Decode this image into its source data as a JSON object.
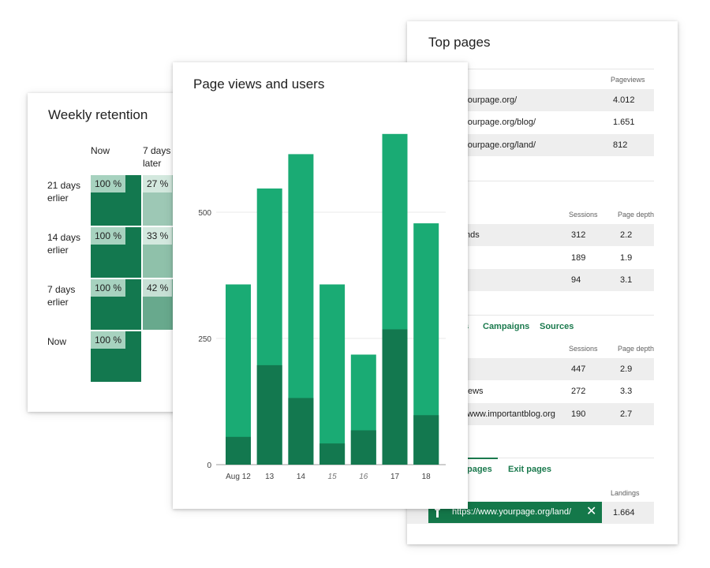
{
  "top_pages": {
    "title": "Top pages",
    "sections": [
      {
        "columns": [
          "Pageviews"
        ],
        "rows": [
          {
            "label": "www.yourpage.org/",
            "values": [
              "4.012"
            ]
          },
          {
            "label": "www.yourpage.org/blog/",
            "values": [
              "1.651"
            ]
          },
          {
            "label": "www.yourpage.org/land/",
            "values": [
              "812"
            ]
          }
        ]
      },
      {
        "columns": [
          "Sessions",
          "Page depth"
        ],
        "rows": [
          {
            "label": "nds",
            "values": [
              "312",
              "2.2"
            ]
          },
          {
            "label": "",
            "values": [
              "189",
              "1.9"
            ]
          },
          {
            "label": "",
            "values": [
              "94",
              "3.1"
            ]
          }
        ]
      },
      {
        "tabs": [
          "s",
          "Campaigns",
          "Sources"
        ],
        "columns": [
          "Sessions",
          "Page depth"
        ],
        "rows": [
          {
            "label": "",
            "values": [
              "447",
              "2.9"
            ]
          },
          {
            "label": "ews",
            "values": [
              "272",
              "3.3"
            ]
          },
          {
            "label": "www.importantblog.org",
            "values": [
              "190",
              "2.7"
            ]
          }
        ]
      },
      {
        "tabs": [
          "pages",
          "Exit pages"
        ],
        "columns": [
          "Landings"
        ],
        "rows": [
          {
            "label": "",
            "values": [
              "1.664"
            ]
          }
        ],
        "chip": {
          "text": "https://www.yourpage.org/land/",
          "close_icon": "close-icon",
          "pin_icon": "pin-icon"
        }
      }
    ]
  },
  "retention": {
    "title": "Weekly retention",
    "columns": [
      "Now",
      "7 days later"
    ],
    "rows": [
      {
        "label": "21 days erlier",
        "cells": [
          {
            "pct": "100 %",
            "value": 100
          },
          {
            "pct": "27 %",
            "value": 27
          }
        ]
      },
      {
        "label": "14 days erlier",
        "cells": [
          {
            "pct": "100 %",
            "value": 100
          },
          {
            "pct": "33 %",
            "value": 33
          }
        ]
      },
      {
        "label": "7 days erlier",
        "cells": [
          {
            "pct": "100 %",
            "value": 100
          },
          {
            "pct": "42 %",
            "value": 42
          }
        ]
      },
      {
        "label": "Now",
        "cells": [
          {
            "pct": "100 %",
            "value": 100
          }
        ]
      }
    ]
  },
  "chart_data": {
    "type": "bar",
    "title": "Page views and users",
    "xlabel": "",
    "ylabel": "",
    "categories": [
      "Aug 12",
      "13",
      "14",
      "15",
      "16",
      "17",
      "18"
    ],
    "weekend_categories": [
      "15",
      "16"
    ],
    "ylim": [
      0,
      650
    ],
    "yticks": [
      0,
      250,
      500
    ],
    "grid": true,
    "stacked_overlay": true,
    "series": [
      {
        "values": [
          357,
          547,
          615,
          357,
          218,
          655,
          478
        ],
        "color": "#1aab74"
      },
      {
        "values": [
          55,
          197,
          132,
          42,
          68,
          268,
          98
        ],
        "color": "#13784f"
      }
    ]
  }
}
